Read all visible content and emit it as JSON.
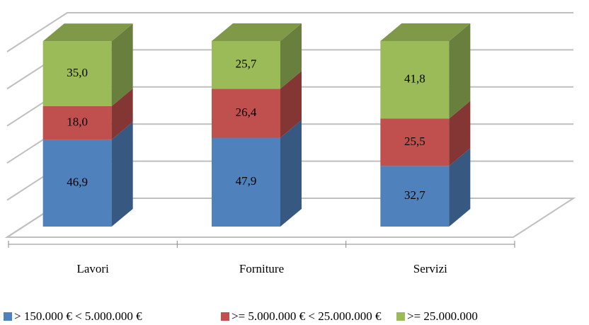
{
  "chart_data": {
    "type": "bar3d_stacked",
    "categories": [
      "Lavori",
      "Forniture",
      "Servizi"
    ],
    "series": [
      {
        "name": "> 150.000 € < 5.000.000 €",
        "color": "#4f81bd",
        "values": [
          46.9,
          47.9,
          32.7
        ],
        "value_labels": [
          "46,9",
          "47,9",
          "32,7"
        ]
      },
      {
        "name": ">= 5.000.000 €  < 25.000.000 €",
        "color": "#c0504d",
        "values": [
          18.0,
          26.4,
          25.5
        ],
        "value_labels": [
          "18,0",
          "26,4",
          "25,5"
        ]
      },
      {
        "name": ">= 25.000.000",
        "color": "#9bbb59",
        "values": [
          35.0,
          25.7,
          41.8
        ],
        "value_labels": [
          "35,0",
          "25,7",
          "41,8"
        ]
      }
    ],
    "ylim": [
      0,
      100
    ],
    "yticks": [
      0,
      20,
      40,
      60,
      80,
      100
    ],
    "grid": true,
    "legend": "bottom"
  }
}
